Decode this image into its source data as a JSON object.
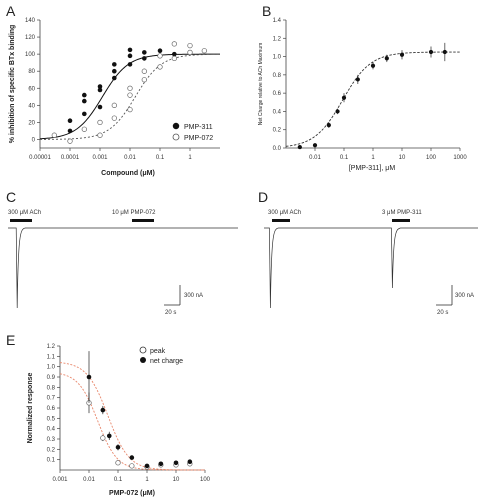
{
  "panels": {
    "a": "A",
    "b": "B",
    "c": "C",
    "d": "D",
    "e": "E"
  },
  "chart_data": [
    {
      "panel": "A",
      "type": "scatter",
      "xlabel": "Compound (μM)",
      "ylabel": "% inhibition of specific BTx binding",
      "xscale": "log",
      "xlim": [
        1e-05,
        10
      ],
      "ylim": [
        -10,
        140
      ],
      "xticks": [
        "0.00001",
        "0.0001",
        "0.001",
        "0.01",
        "0.1",
        "1"
      ],
      "yticks": [
        "0",
        "20",
        "40",
        "60",
        "80",
        "100",
        "120",
        "140"
      ],
      "legend_position": "bottom-right",
      "series": [
        {
          "name": "PMP-311",
          "marker": "filled-circle",
          "fit": {
            "bottom": 0,
            "top": 100,
            "ic50": 0.0012,
            "hill": 1.0
          },
          "points": [
            [
              0.0001,
              22
            ],
            [
              0.0001,
              10
            ],
            [
              0.0003,
              30
            ],
            [
              0.0003,
              45
            ],
            [
              0.0003,
              52
            ],
            [
              0.001,
              38
            ],
            [
              0.001,
              58
            ],
            [
              0.001,
              62
            ],
            [
              0.003,
              72
            ],
            [
              0.003,
              80
            ],
            [
              0.003,
              88
            ],
            [
              0.01,
              98
            ],
            [
              0.01,
              88
            ],
            [
              0.01,
              105
            ],
            [
              0.03,
              102
            ],
            [
              0.03,
              95
            ],
            [
              0.1,
              98
            ],
            [
              0.1,
              104
            ],
            [
              0.3,
              100
            ],
            [
              1,
              102
            ]
          ]
        },
        {
          "name": "PMP-072",
          "marker": "open-circle",
          "fit": {
            "bottom": 0,
            "top": 100,
            "ic50": 0.015,
            "hill": 1.0
          },
          "points": [
            [
              3e-05,
              5
            ],
            [
              0.0001,
              -2
            ],
            [
              0.0003,
              12
            ],
            [
              0.001,
              5
            ],
            [
              0.001,
              20
            ],
            [
              0.003,
              25
            ],
            [
              0.003,
              40
            ],
            [
              0.01,
              35
            ],
            [
              0.01,
              52
            ],
            [
              0.01,
              60
            ],
            [
              0.03,
              70
            ],
            [
              0.03,
              80
            ],
            [
              0.1,
              85
            ],
            [
              0.1,
              98
            ],
            [
              0.3,
              95
            ],
            [
              0.3,
              112
            ],
            [
              1,
              102
            ],
            [
              1,
              110
            ],
            [
              3,
              104
            ]
          ]
        }
      ]
    },
    {
      "panel": "B",
      "type": "scatter",
      "xlabel": "[PMP-311], μM",
      "ylabel": "Net Charge relative to ACh Maximum",
      "xscale": "log",
      "xlim": [
        0.001,
        1000
      ],
      "ylim": [
        0,
        1.4
      ],
      "xticks": [
        "0.01",
        "0.1",
        "1",
        "10",
        "100",
        "1000"
      ],
      "yticks": [
        "0.0",
        "0.2",
        "0.4",
        "0.6",
        "0.8",
        "1.0",
        "1.2",
        "1.4"
      ],
      "fit": {
        "bottom": 0,
        "top": 1.05,
        "ec50": 0.09,
        "hill": 0.9
      },
      "points": [
        {
          "x": 0.003,
          "y": 0.01,
          "err": 0.01
        },
        {
          "x": 0.01,
          "y": 0.03,
          "err": 0.01
        },
        {
          "x": 0.03,
          "y": 0.25,
          "err": 0.03
        },
        {
          "x": 0.06,
          "y": 0.4,
          "err": 0.03
        },
        {
          "x": 0.1,
          "y": 0.55,
          "err": 0.05
        },
        {
          "x": 0.3,
          "y": 0.75,
          "err": 0.05
        },
        {
          "x": 1,
          "y": 0.9,
          "err": 0.04
        },
        {
          "x": 3,
          "y": 0.98,
          "err": 0.04
        },
        {
          "x": 10,
          "y": 1.02,
          "err": 0.05
        },
        {
          "x": 100,
          "y": 1.05,
          "err": 0.06
        },
        {
          "x": 300,
          "y": 1.05,
          "err": 0.1
        }
      ]
    },
    {
      "panel": "E",
      "type": "scatter",
      "xlabel": "PMP-072 (μM)",
      "ylabel": "Normalized response",
      "xscale": "log",
      "xlim": [
        0.001,
        100
      ],
      "ylim": [
        0,
        1.2
      ],
      "xticks": [
        "0.001",
        "0.01",
        "0.1",
        "1",
        "10",
        "100"
      ],
      "yticks": [
        "0.1",
        "0.2",
        "0.3",
        "0.4",
        "0.5",
        "0.6",
        "0.7",
        "0.8",
        "0.9",
        "1.0",
        "1.1",
        "1.2"
      ],
      "legend_position": "top-right",
      "series": [
        {
          "name": "peak",
          "marker": "open-circle",
          "fit": {
            "bottom": 0,
            "top": 0.95,
            "ic50": 0.02,
            "hill": 1.3
          },
          "points": [
            {
              "x": 0.01,
              "y": 0.65,
              "err": 0.1
            },
            {
              "x": 0.03,
              "y": 0.31,
              "err": 0.03
            },
            {
              "x": 0.1,
              "y": 0.07,
              "err": 0.02
            },
            {
              "x": 0.3,
              "y": 0.04,
              "err": 0.01
            },
            {
              "x": 1,
              "y": 0.03,
              "err": 0.01
            },
            {
              "x": 3,
              "y": 0.05,
              "err": 0.01
            },
            {
              "x": 10,
              "y": 0.05,
              "err": 0.01
            },
            {
              "x": 30,
              "y": 0.06,
              "err": 0.01
            }
          ]
        },
        {
          "name": "net charge",
          "marker": "filled-circle",
          "fit": {
            "bottom": 0,
            "top": 1.05,
            "ic50": 0.045,
            "hill": 1.2
          },
          "points": [
            {
              "x": 0.01,
              "y": 0.9,
              "err": 0.25
            },
            {
              "x": 0.03,
              "y": 0.58,
              "err": 0.04
            },
            {
              "x": 0.05,
              "y": 0.33,
              "err": 0.04
            },
            {
              "x": 0.1,
              "y": 0.22,
              "err": 0.03
            },
            {
              "x": 0.3,
              "y": 0.12,
              "err": 0.02
            },
            {
              "x": 1,
              "y": 0.04,
              "err": 0.01
            },
            {
              "x": 3,
              "y": 0.06,
              "err": 0.01
            },
            {
              "x": 10,
              "y": 0.07,
              "err": 0.01
            },
            {
              "x": 30,
              "y": 0.08,
              "err": 0.01
            }
          ]
        }
      ]
    }
  ],
  "traces": {
    "c": {
      "label1": "300 μM ACh",
      "label2": "10 μM PMP-072",
      "scale_current": "300 nA",
      "scale_time": "20 s",
      "peaks": [
        {
          "at": 0.04,
          "depth": 1.0
        }
      ]
    },
    "d": {
      "label1": "300 μM ACh",
      "label2": "3 μM PMP-311",
      "scale_current": "300 nA",
      "scale_time": "20 s",
      "peaks": [
        {
          "at": 0.03,
          "depth": 1.0
        },
        {
          "at": 0.6,
          "depth": 0.75
        }
      ]
    }
  }
}
